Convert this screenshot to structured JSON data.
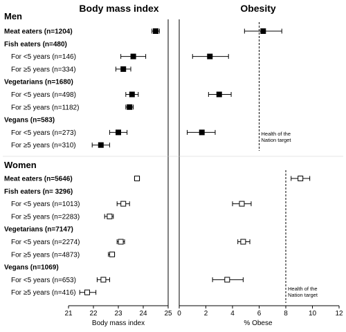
{
  "chart_data": [
    {
      "type": "forest",
      "title": "Body mass index",
      "xlabel": "Body mass index",
      "xlim": [
        21,
        25
      ],
      "ticks": [
        21,
        22,
        23,
        24,
        25
      ],
      "groups": [
        {
          "name": "Men",
          "rows": [
            {
              "label": "Meat eaters (n=1204)",
              "bold": true,
              "est": 24.5,
              "lo": 24.35,
              "hi": 24.65
            },
            {
              "label": "Fish eaters (n=480)",
              "bold": true,
              "est": null,
              "lo": null,
              "hi": null
            },
            {
              "label": "For <5 years (n=146)",
              "bold": false,
              "est": 23.6,
              "lo": 23.1,
              "hi": 24.1
            },
            {
              "label": "For ≥5 years (n=334)",
              "bold": false,
              "est": 23.2,
              "lo": 22.9,
              "hi": 23.5
            },
            {
              "label": "Vegetarians (n=1680)",
              "bold": true,
              "est": null,
              "lo": null,
              "hi": null
            },
            {
              "label": "For <5 years (n=498)",
              "bold": false,
              "est": 23.55,
              "lo": 23.3,
              "hi": 23.8
            },
            {
              "label": "For ≥5 years (n=1182)",
              "bold": false,
              "est": 23.45,
              "lo": 23.3,
              "hi": 23.6
            },
            {
              "label": "Vegans (n=583)",
              "bold": true,
              "est": null,
              "lo": null,
              "hi": null
            },
            {
              "label": "For <5 years (n=273)",
              "bold": false,
              "est": 23.0,
              "lo": 22.65,
              "hi": 23.35
            },
            {
              "label": "For ≥5 years (n=310)",
              "bold": false,
              "est": 22.3,
              "lo": 21.95,
              "hi": 22.65
            }
          ]
        },
        {
          "name": "Women",
          "rows": [
            {
              "label": "Meat eaters (n=5646)",
              "bold": true,
              "est": 23.75,
              "lo": 23.65,
              "hi": 23.85
            },
            {
              "label": "Fish eaters (n= 3296)",
              "bold": true,
              "est": null,
              "lo": null,
              "hi": null
            },
            {
              "label": "For <5 years (n=1013)",
              "bold": false,
              "est": 23.2,
              "lo": 22.95,
              "hi": 23.45
            },
            {
              "label": "For ≥5 years (n=2283)",
              "bold": false,
              "est": 22.65,
              "lo": 22.45,
              "hi": 22.8
            },
            {
              "label": "Vegetarians (n=7147)",
              "bold": true,
              "est": null,
              "lo": null,
              "hi": null
            },
            {
              "label": "For <5 years (n=2274)",
              "bold": false,
              "est": 23.1,
              "lo": 22.95,
              "hi": 23.25
            },
            {
              "label": "For ≥5 years (n=4873)",
              "bold": false,
              "est": 22.75,
              "lo": 22.6,
              "hi": 22.85
            },
            {
              "label": "Vegans (n=1069)",
              "bold": true,
              "est": null,
              "lo": null,
              "hi": null
            },
            {
              "label": "For <5 years (n=653)",
              "bold": false,
              "est": 22.4,
              "lo": 22.15,
              "hi": 22.65
            },
            {
              "label": "For ≥5 years (n=416)",
              "bold": false,
              "est": 21.75,
              "lo": 21.45,
              "hi": 22.1
            }
          ]
        }
      ]
    },
    {
      "type": "forest",
      "title": "Obesity",
      "xlabel": "% Obese",
      "xlim": [
        0,
        12
      ],
      "ticks": [
        0,
        2,
        4,
        6,
        8,
        10,
        12
      ],
      "reference_lines": [
        {
          "group": "Men",
          "value": 6,
          "label": [
            "Health of the",
            "Nation target"
          ]
        },
        {
          "group": "Women",
          "value": 8,
          "label": [
            "Health of the",
            "Nation target"
          ]
        }
      ],
      "groups": [
        {
          "name": "Men",
          "values": [
            {
              "est": 6.3,
              "lo": 4.9,
              "hi": 7.7
            },
            null,
            {
              "est": 2.3,
              "lo": 1.0,
              "hi": 3.7
            },
            {
              "est": null,
              "lo": null,
              "hi": null
            },
            null,
            {
              "est": 3.0,
              "lo": 2.2,
              "hi": 3.9
            },
            {
              "est": null,
              "lo": null,
              "hi": null
            },
            null,
            {
              "est": 1.7,
              "lo": 0.6,
              "hi": 2.7
            },
            {
              "est": null,
              "lo": null,
              "hi": null
            }
          ]
        },
        {
          "name": "Women",
          "values": [
            {
              "est": 9.1,
              "lo": 8.4,
              "hi": 9.8
            },
            null,
            {
              "est": 4.7,
              "lo": 4.0,
              "hi": 5.4
            },
            {
              "est": null,
              "lo": null,
              "hi": null
            },
            null,
            {
              "est": 4.8,
              "lo": 4.4,
              "hi": 5.3
            },
            {
              "est": null,
              "lo": null,
              "hi": null
            },
            null,
            {
              "est": 3.6,
              "lo": 2.5,
              "hi": 4.8
            },
            {
              "est": null,
              "lo": null,
              "hi": null
            }
          ]
        }
      ]
    }
  ],
  "style": {
    "men_marker": "#000000",
    "women_marker": "#ffffff",
    "stroke": "#000000"
  }
}
